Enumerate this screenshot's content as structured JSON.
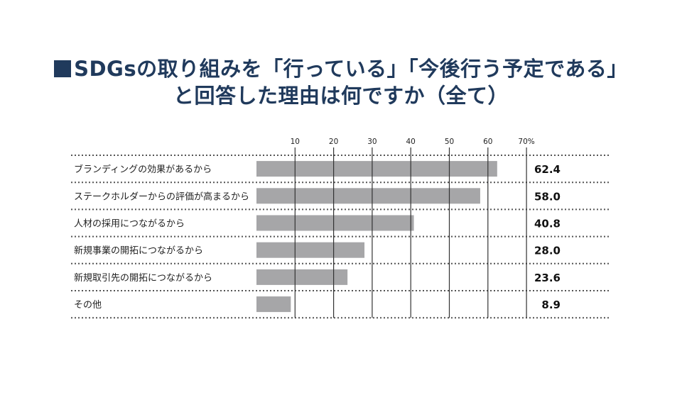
{
  "title": {
    "line1": "SDGsの取り組みを「行っている」「今後行う予定である」",
    "line2": "と回答した理由は何ですか（全て）"
  },
  "colors": {
    "title": "#203a5c",
    "bar": "#a6a6a8",
    "axis": "#333333"
  },
  "chart_data": {
    "type": "bar",
    "orientation": "horizontal",
    "title": "SDGsの取り組みを「行っている」「今後行う予定である」と回答した理由は何ですか（全て）",
    "categories": [
      "ブランディングの効果があるから",
      "ステークホルダーからの評価が高まるから",
      "人材の採用につながるから",
      "新規事業の開拓につながるから",
      "新規取引先の開拓につながるから",
      "その他"
    ],
    "values": [
      62.4,
      58.0,
      40.8,
      28.0,
      23.6,
      8.9
    ],
    "value_labels": [
      "62.4",
      "58.0",
      "40.8",
      "28.0",
      "23.6",
      "8.9"
    ],
    "xlim": [
      0,
      70
    ],
    "ticks": [
      10,
      20,
      30,
      40,
      50,
      60,
      70
    ],
    "tick_labels": [
      "10",
      "20",
      "30",
      "40",
      "50",
      "60",
      "70%"
    ],
    "grid": true,
    "legend": "none"
  }
}
